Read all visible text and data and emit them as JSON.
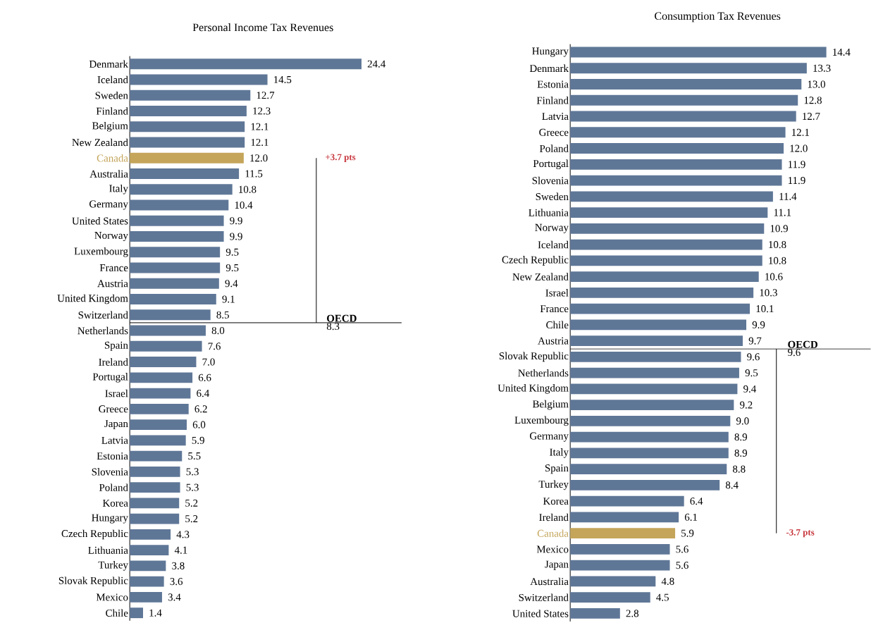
{
  "chart_data": [
    {
      "type": "bar",
      "orientation": "horizontal",
      "title": "Personal Income Tax Revenues",
      "categories": [
        "Denmark",
        "Iceland",
        "Sweden",
        "Finland",
        "Belgium",
        "New Zealand",
        "Canada",
        "Australia",
        "Italy",
        "Germany",
        "United States",
        "Norway",
        "Luxembourg",
        "France",
        "Austria",
        "United Kingdom",
        "Switzerland",
        "Netherlands",
        "Spain",
        "Ireland",
        "Portugal",
        "Israel",
        "Greece",
        "Japan",
        "Latvia",
        "Estonia",
        "Slovenia",
        "Poland",
        "Korea",
        "Hungary",
        "Czech Republic",
        "Lithuania",
        "Turkey",
        "Slovak Republic",
        "Mexico",
        "Chile"
      ],
      "values": [
        24.4,
        14.5,
        12.7,
        12.3,
        12.1,
        12.1,
        12.0,
        11.5,
        10.8,
        10.4,
        9.9,
        9.9,
        9.5,
        9.5,
        9.4,
        9.1,
        8.5,
        8.0,
        7.6,
        7.0,
        6.6,
        6.4,
        6.2,
        6.0,
        5.9,
        5.5,
        5.3,
        5.3,
        5.2,
        5.2,
        4.3,
        4.1,
        3.8,
        3.6,
        3.4,
        1.4
      ],
      "value_labels": [
        "24.4",
        "14.5",
        "12.7",
        "12.3",
        "12.1",
        "12.1",
        "12.0",
        "11.5",
        "10.8",
        "10.4",
        "9.9",
        "9.9",
        "9.5",
        "9.5",
        "9.4",
        "9.1",
        "8.5",
        "8.0",
        "7.6",
        "7.0",
        "6.6",
        "6.4",
        "6.2",
        "6.0",
        "5.9",
        "5.5",
        "5.3",
        "5.3",
        "5.2",
        "5.2",
        "4.3",
        "4.1",
        "3.8",
        "3.6",
        "3.4",
        "1.4"
      ],
      "colors": [
        "#5f7797",
        "#5f7797",
        "#5f7797",
        "#5f7797",
        "#5f7797",
        "#5f7797",
        "#c4a55a",
        "#5f7797",
        "#5f7797",
        "#5f7797",
        "#5f7797",
        "#5f7797",
        "#5f7797",
        "#5f7797",
        "#5f7797",
        "#5f7797",
        "#5f7797",
        "#5f7797",
        "#5f7797",
        "#5f7797",
        "#5f7797",
        "#5f7797",
        "#5f7797",
        "#5f7797",
        "#5f7797",
        "#5f7797",
        "#5f7797",
        "#5f7797",
        "#5f7797",
        "#5f7797",
        "#5f7797",
        "#5f7797",
        "#5f7797",
        "#5f7797",
        "#5f7797",
        "#5f7797"
      ],
      "annotations": [
        "OECD",
        "8.3",
        "+3.7 pts"
      ]
    },
    {
      "type": "bar",
      "orientation": "horizontal",
      "title": "Consumption Tax Revenues",
      "categories": [
        "Hungary",
        "Denmark",
        "Estonia",
        "Finland",
        "Latvia",
        "Greece",
        "Poland",
        "Portugal",
        "Slovenia",
        "Sweden",
        "Lithuania",
        "Norway",
        "Iceland",
        "Czech Republic",
        "New Zealand",
        "Israel",
        "France",
        "Chile",
        "Austria",
        "Slovak Republic",
        "Netherlands",
        "United Kingdom",
        "Belgium",
        "Luxembourg",
        "Germany",
        "Italy",
        "Spain",
        "Turkey",
        "Korea",
        "Ireland",
        "Canada",
        "Mexico",
        "Japan",
        "Australia",
        "Switzerland",
        "United States"
      ],
      "values": [
        14.4,
        13.3,
        13.0,
        12.8,
        12.7,
        12.1,
        12.0,
        11.9,
        11.9,
        11.4,
        11.1,
        10.9,
        10.8,
        10.8,
        10.6,
        10.3,
        10.1,
        9.9,
        9.7,
        9.6,
        9.5,
        9.4,
        9.2,
        9.0,
        8.9,
        8.9,
        8.8,
        8.4,
        6.4,
        6.1,
        5.9,
        5.6,
        5.6,
        4.8,
        4.5,
        2.8
      ],
      "value_labels": [
        "14.4",
        "13.3",
        "13.0",
        "12.8",
        "12.7",
        "12.1",
        "12.0",
        "11.9",
        "11.9",
        "11.4",
        "11.1",
        "10.9",
        "10.8",
        "10.8",
        "10.6",
        "10.3",
        "10.1",
        "9.9",
        "9.7",
        "9.6",
        "9.5",
        "9.4",
        "9.2",
        "9.0",
        "8.9",
        "8.9",
        "8.8",
        "8.4",
        "6.4",
        "6.1",
        "5.9",
        "5.6",
        "5.6",
        "4.8",
        "4.5",
        "2.8"
      ],
      "colors": [
        "#5f7797",
        "#5f7797",
        "#5f7797",
        "#5f7797",
        "#5f7797",
        "#5f7797",
        "#5f7797",
        "#5f7797",
        "#5f7797",
        "#5f7797",
        "#5f7797",
        "#5f7797",
        "#5f7797",
        "#5f7797",
        "#5f7797",
        "#5f7797",
        "#5f7797",
        "#5f7797",
        "#5f7797",
        "#5f7797",
        "#5f7797",
        "#5f7797",
        "#5f7797",
        "#5f7797",
        "#5f7797",
        "#5f7797",
        "#5f7797",
        "#5f7797",
        "#5f7797",
        "#5f7797",
        "#c4a55a",
        "#5f7797",
        "#5f7797",
        "#5f7797",
        "#5f7797",
        "#5f7797"
      ],
      "annotations": [
        "OECD",
        "9.6",
        "-3.7 pts"
      ]
    }
  ]
}
